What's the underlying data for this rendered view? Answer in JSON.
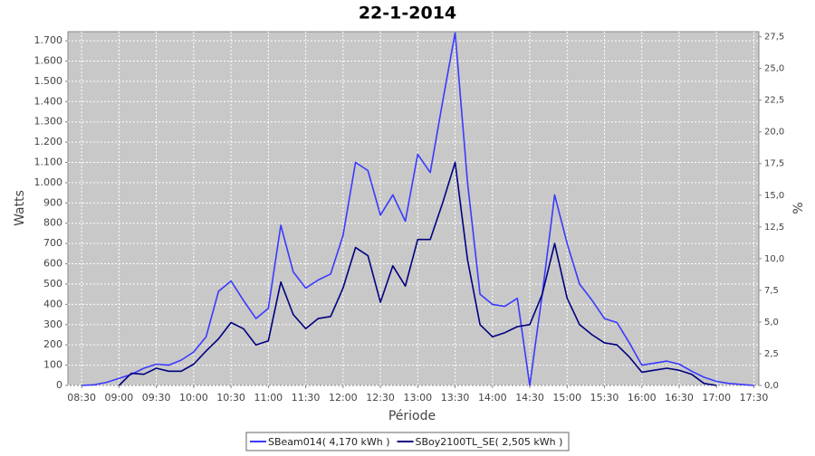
{
  "chart_data": {
    "type": "line",
    "title": "22-1-2014",
    "y_label": "Watts",
    "y2_label": "%",
    "x_label": "Période",
    "xlim": [
      "08:19",
      "17:34"
    ],
    "xticks": [
      "08:30",
      "09:00",
      "09:30",
      "10:00",
      "10:30",
      "11:00",
      "11:30",
      "12:00",
      "12:30",
      "13:00",
      "13:30",
      "14:00",
      "14:30",
      "15:00",
      "15:30",
      "16:00",
      "16:30",
      "17:00",
      "17:30"
    ],
    "ylim": [
      0,
      1745
    ],
    "yticks": [
      0,
      100,
      200,
      300,
      400,
      500,
      600,
      700,
      800,
      900,
      {
        "value": 1000,
        "label": "1.000"
      },
      {
        "value": 1100,
        "label": "1.100"
      },
      {
        "value": 1200,
        "label": "1.200"
      },
      {
        "value": 1300,
        "label": "1.300"
      },
      {
        "value": 1400,
        "label": "1.400"
      },
      {
        "value": 1500,
        "label": "1.500"
      },
      {
        "value": 1600,
        "label": "1.600"
      },
      {
        "value": 1700,
        "label": "1.700"
      }
    ],
    "y2lim": [
      0,
      27.9
    ],
    "y2ticks": [
      {
        "value": 0,
        "label": "0,0"
      },
      {
        "value": 2.5,
        "label": "2,5"
      },
      {
        "value": 5,
        "label": "5,0"
      },
      {
        "value": 7.5,
        "label": "7,5"
      },
      {
        "value": 10,
        "label": "10,0"
      },
      {
        "value": 12.5,
        "label": "12,5"
      },
      {
        "value": 15,
        "label": "15,0"
      },
      {
        "value": 17.5,
        "label": "17,5"
      },
      {
        "value": 20,
        "label": "20,0"
      },
      {
        "value": 22.5,
        "label": "22,5"
      },
      {
        "value": 25,
        "label": "25,0"
      },
      {
        "value": 27.5,
        "label": "27,5"
      }
    ],
    "grid": true,
    "x": [
      "08:30",
      "08:40",
      "08:50",
      "09:00",
      "09:10",
      "09:20",
      "09:30",
      "09:40",
      "09:50",
      "10:00",
      "10:10",
      "10:20",
      "10:30",
      "10:40",
      "10:50",
      "11:00",
      "11:10",
      "11:20",
      "11:30",
      "11:40",
      "11:50",
      "12:00",
      "12:10",
      "12:20",
      "12:30",
      "12:40",
      "12:50",
      "13:00",
      "13:10",
      "13:20",
      "13:30",
      "13:40",
      "13:50",
      "14:00",
      "14:10",
      "14:20",
      "14:30",
      "14:40",
      "14:50",
      "15:00",
      "15:10",
      "15:20",
      "15:30",
      "15:40",
      "15:50",
      "16:00",
      "16:10",
      "16:20",
      "16:30",
      "16:40",
      "16:50",
      "17:00",
      "17:10",
      "17:20",
      "17:30"
    ],
    "series": [
      {
        "name": "SBeam014( 4,170 kWh )",
        "color": "#3a3aff",
        "values": [
          0,
          3,
          15,
          35,
          55,
          85,
          105,
          100,
          125,
          165,
          240,
          464,
          515,
          420,
          330,
          380,
          790,
          560,
          480,
          520,
          550,
          740,
          1100,
          1060,
          840,
          940,
          810,
          1140,
          1050,
          1400,
          1740,
          1000,
          450,
          400,
          390,
          430,
          0,
          450,
          940,
          700,
          500,
          420,
          330,
          310,
          210,
          100,
          110,
          120,
          105,
          70,
          40,
          20,
          10,
          5,
          0
        ]
      },
      {
        "name": "SBoy2100TL_SE( 2,505 kWh )",
        "color": "#000080",
        "values": [
          null,
          null,
          null,
          0,
          60,
          55,
          85,
          70,
          70,
          105,
          170,
          230,
          310,
          280,
          200,
          220,
          510,
          350,
          280,
          330,
          340,
          480,
          680,
          640,
          410,
          590,
          490,
          720,
          720,
          900,
          1100,
          620,
          300,
          240,
          260,
          290,
          300,
          450,
          700,
          430,
          300,
          250,
          210,
          200,
          140,
          65,
          75,
          85,
          75,
          55,
          10,
          0,
          null,
          null,
          null
        ]
      }
    ]
  }
}
